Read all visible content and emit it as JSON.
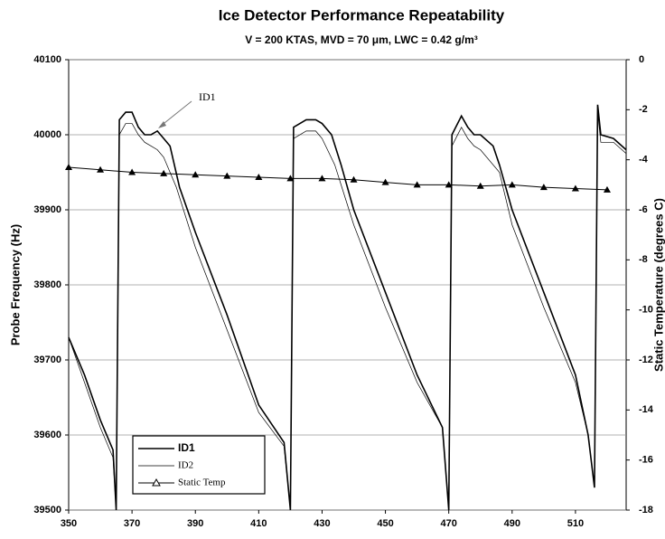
{
  "chart_data": {
    "type": "line",
    "title": "Ice Detector Performance Repeatability",
    "subtitle": "V = 200 KTAS, MVD = 70 μm, LWC = 0.42 g/m³",
    "ylabel": "Probe Frequency (Hz)",
    "y2label": "Static Temperature (degrees C)",
    "annotation": "ID1",
    "xlim": [
      350,
      526
    ],
    "xticks": [
      350,
      370,
      390,
      410,
      430,
      450,
      470,
      490,
      510
    ],
    "ylim": [
      39500,
      40100
    ],
    "yticks": [
      39500,
      39600,
      39700,
      39800,
      39900,
      40000,
      40100
    ],
    "y2lim": [
      -18,
      0
    ],
    "y2ticks": [
      -18,
      -16,
      -14,
      -12,
      -10,
      -8,
      -6,
      -4,
      -2,
      0
    ],
    "grid": true,
    "legend": "bottom-left",
    "series": [
      {
        "name": "ID1",
        "color": "#000000",
        "x": [
          350,
          355,
          360,
          364,
          365,
          366,
          368,
          370,
          372,
          374,
          376,
          378,
          380,
          382,
          385,
          390,
          400,
          410,
          418,
          420,
          421,
          425,
          428,
          430,
          433,
          436,
          440,
          450,
          460,
          468,
          470,
          471,
          474,
          476,
          478,
          480,
          484,
          486,
          490,
          500,
          510,
          514,
          516,
          517,
          518,
          522,
          526
        ],
        "values": [
          39730,
          39680,
          39620,
          39580,
          39500,
          40020,
          40030,
          40030,
          40010,
          40000,
          40000,
          40005,
          39995,
          39985,
          39930,
          39870,
          39760,
          39640,
          39590,
          39500,
          40010,
          40020,
          40020,
          40015,
          40000,
          39960,
          39900,
          39790,
          39680,
          39610,
          39500,
          40000,
          40025,
          40010,
          40000,
          40000,
          39985,
          39960,
          39900,
          39790,
          39680,
          39600,
          39530,
          40040,
          40000,
          39995,
          39980
        ]
      },
      {
        "name": "ID2",
        "color": "#000000",
        "x": [
          350,
          355,
          360,
          364,
          365,
          366,
          368,
          370,
          372,
          374,
          376,
          378,
          380,
          384,
          390,
          400,
          410,
          418,
          420,
          421,
          425,
          428,
          430,
          434,
          440,
          450,
          460,
          468,
          470,
          471,
          474,
          476,
          478,
          480,
          486,
          490,
          500,
          510,
          514,
          516,
          517,
          518,
          522,
          526
        ],
        "values": [
          39730,
          39670,
          39610,
          39570,
          39500,
          40000,
          40015,
          40015,
          40000,
          39990,
          39985,
          39980,
          39970,
          39930,
          39850,
          39740,
          39630,
          39585,
          39500,
          39995,
          40005,
          40005,
          39995,
          39960,
          39880,
          39770,
          39670,
          39610,
          39500,
          39985,
          40010,
          39995,
          39985,
          39980,
          39950,
          39880,
          39770,
          39670,
          39600,
          39530,
          40030,
          39990,
          39990,
          39975
        ]
      },
      {
        "name": "Static Temp",
        "color": "#000000",
        "axis": "y2",
        "marker": "triangle",
        "x": [
          350,
          360,
          370,
          380,
          390,
          400,
          410,
          420,
          430,
          440,
          450,
          460,
          470,
          480,
          490,
          500,
          510,
          520
        ],
        "values": [
          -4.3,
          -4.4,
          -4.5,
          -4.55,
          -4.6,
          -4.65,
          -4.7,
          -4.75,
          -4.75,
          -4.8,
          -4.9,
          -5.0,
          -5.0,
          -5.05,
          -5.0,
          -5.1,
          -5.15,
          -5.2
        ]
      }
    ]
  }
}
